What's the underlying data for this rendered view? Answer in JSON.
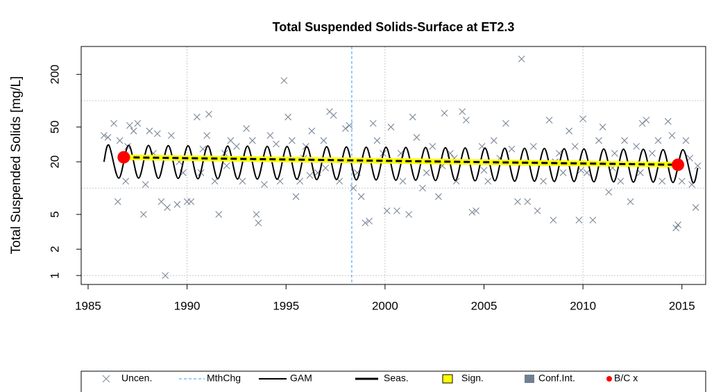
{
  "chart_data": {
    "type": "scatter",
    "title": "Total Suspended Solids-Surface at ET2.3",
    "y_label": "Total Suspended Solids [mg/L]",
    "log_y": true,
    "xlim": [
      1984.65,
      2016.2
    ],
    "ylim": [
      0.79,
      417
    ],
    "xticks": [
      1985,
      1990,
      1995,
      2000,
      2005,
      2010,
      2015
    ],
    "yticks": [
      1,
      2,
      5,
      20,
      50,
      200
    ],
    "xgrid": [
      1990,
      2000,
      2010
    ],
    "ygrid": [
      1,
      10,
      100
    ],
    "series": [
      {
        "name": "Uncen.",
        "type": "scatter",
        "color": "#7b8898",
        "x": [
          1985.8,
          1986.0,
          1986.3,
          1986.5,
          1986.6,
          1986.9,
          1987.1,
          1987.3,
          1987.5,
          1987.8,
          1987.9,
          1988.1,
          1988.3,
          1988.5,
          1988.7,
          1988.9,
          1989.0,
          1989.2,
          1989.5,
          1989.8,
          1990.0,
          1990.2,
          1990.5,
          1990.7,
          1991.0,
          1991.1,
          1991.4,
          1991.6,
          1991.9,
          1992.2,
          1992.5,
          1992.8,
          1993.0,
          1993.3,
          1993.5,
          1993.6,
          1993.9,
          1994.2,
          1994.5,
          1994.7,
          1994.9,
          1995.1,
          1995.3,
          1995.5,
          1995.7,
          1996.0,
          1996.3,
          1996.6,
          1996.9,
          1997.2,
          1997.4,
          1997.7,
          1998.0,
          1998.2,
          1998.4,
          1998.6,
          1998.8,
          1999.0,
          1999.2,
          1999.4,
          1999.6,
          1999.9,
          2000.1,
          2000.3,
          2000.6,
          2000.9,
          2001.2,
          2001.4,
          2001.6,
          2001.9,
          2002.1,
          2002.4,
          2002.7,
          2003.0,
          2003.3,
          2003.6,
          2003.9,
          2004.1,
          2004.4,
          2004.6,
          2004.9,
          2005.2,
          2005.5,
          2005.8,
          2006.1,
          2006.4,
          2006.7,
          2006.9,
          2007.2,
          2007.5,
          2007.7,
          2008.0,
          2008.3,
          2008.5,
          2008.8,
          2009.0,
          2009.3,
          2009.6,
          2009.8,
          2010.0,
          2010.2,
          2010.5,
          2010.8,
          2011.0,
          2011.3,
          2011.6,
          2011.9,
          2012.1,
          2012.4,
          2012.7,
          2013.0,
          2013.2,
          2013.5,
          2013.8,
          2014.0,
          2014.3,
          2014.5,
          2014.7,
          2014.8,
          2015.0,
          2015.2,
          2015.4,
          2015.5,
          2015.7,
          2015.8,
          1987.0,
          1989.6,
          1992.0,
          1995.9,
          1997.0,
          2000.8,
          2002.9,
          2005.0,
          2008.6,
          2011.5,
          2012.9,
          1990.8,
          1996.2,
          2003.5,
          2009.9
        ],
        "values": [
          40,
          38,
          55,
          7,
          35,
          12,
          52,
          45,
          55,
          5,
          11,
          45,
          25,
          42,
          7,
          1,
          6,
          40,
          6.5,
          15,
          7,
          7,
          65,
          15,
          40,
          70,
          12,
          5,
          25,
          35,
          30,
          12,
          48,
          35,
          5,
          4,
          11,
          40,
          32,
          12,
          170,
          65,
          35,
          8,
          12,
          30,
          45,
          15,
          35,
          75,
          68,
          12,
          48,
          52,
          10,
          15,
          8,
          4,
          4.2,
          55,
          35,
          25,
          5.5,
          50,
          5.5,
          12,
          5,
          65,
          38,
          10,
          15,
          30,
          8,
          72,
          25,
          12,
          75,
          60,
          5.3,
          5.5,
          30,
          12,
          35,
          22,
          55,
          28,
          7,
          300,
          7,
          30,
          5.5,
          12,
          60,
          4.3,
          25,
          15,
          45,
          30,
          4.3,
          62,
          15,
          4.3,
          35,
          50,
          9,
          25,
          12,
          35,
          7,
          30,
          55,
          60,
          25,
          35,
          12,
          58,
          40,
          3.5,
          3.8,
          12,
          35,
          22,
          11,
          6,
          18,
          30,
          20,
          18,
          22,
          17,
          25,
          18,
          16,
          20,
          17,
          15,
          28,
          14,
          22,
          16
        ]
      },
      {
        "name": "MthChg",
        "type": "vline",
        "color": "#3399ff",
        "x": [
          1998.32
        ]
      },
      {
        "name": "GAM",
        "type": "line",
        "color": "#000000",
        "x": [
          1985.8,
          1986.05,
          1986.55,
          1987.05,
          1987.55,
          1988.05,
          1988.55,
          1989.05,
          1989.55,
          1990.05,
          1990.55,
          1991.05,
          1991.55,
          1992.05,
          1992.55,
          1993.05,
          1993.55,
          1994.05,
          1994.55,
          1995.05,
          1995.55,
          1996.05,
          1996.55,
          1997.05,
          1997.55,
          1998.05,
          1998.55,
          1999.05,
          1999.55,
          2000.05,
          2000.55,
          2001.05,
          2001.55,
          2002.05,
          2002.55,
          2003.05,
          2003.55,
          2004.05,
          2004.55,
          2005.05,
          2005.55,
          2006.05,
          2006.55,
          2007.05,
          2007.55,
          2008.05,
          2008.55,
          2009.05,
          2009.55,
          2010.05,
          2010.55,
          2011.05,
          2011.55,
          2012.05,
          2012.55,
          2013.05,
          2013.55,
          2014.05,
          2014.55,
          2015.05,
          2015.55,
          2015.8
        ],
        "values": [
          20,
          31.0,
          13.0,
          30.9,
          13.0,
          30.8,
          12.9,
          30.6,
          12.9,
          30.5,
          12.8,
          30.4,
          12.8,
          30.3,
          12.7,
          30.2,
          12.7,
          30.0,
          12.6,
          29.9,
          12.6,
          29.8,
          12.5,
          29.7,
          12.5,
          29.6,
          12.4,
          29.4,
          12.4,
          29.3,
          12.3,
          29.2,
          12.3,
          29.1,
          12.2,
          29.0,
          12.2,
          28.8,
          12.1,
          28.7,
          12.1,
          28.6,
          12.0,
          28.5,
          12.0,
          28.4,
          11.9,
          28.2,
          11.9,
          28.1,
          11.8,
          28.0,
          11.8,
          27.9,
          11.7,
          27.8,
          11.7,
          27.6,
          11.6,
          27.5,
          11.6,
          17
        ]
      },
      {
        "name": "Seas.",
        "type": "dashed",
        "color": "#000000",
        "x": [
          1986.8,
          2014.8
        ],
        "values": [
          22.5,
          18.5
        ]
      },
      {
        "name": "Sign.",
        "type": "thick",
        "color": "#ffff00",
        "x": [
          1986.8,
          2014.8
        ],
        "values": [
          22.5,
          18.5
        ]
      },
      {
        "name": "Conf.Int.",
        "type": "band",
        "color": "#708090",
        "x": [
          1986.8,
          2014.8
        ],
        "lower": [
          21,
          17.3
        ],
        "upper": [
          24,
          19.8
        ]
      },
      {
        "name": "B/C x",
        "type": "points",
        "color": "#ff0000",
        "x": [
          1986.8,
          2014.8
        ],
        "values": [
          22.5,
          18.5
        ]
      }
    ]
  }
}
